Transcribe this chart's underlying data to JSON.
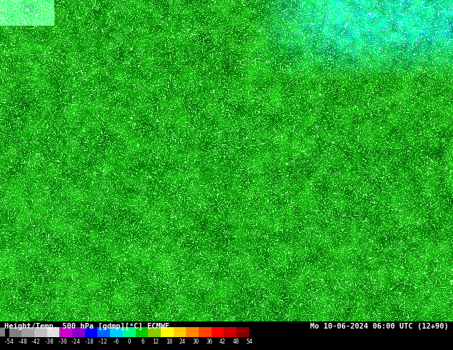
{
  "title_left": "Height/Temp. 500 hPa [gdmp][°C] ECMWF",
  "title_right": "Mo 10-06-2024 06:00 UTC (12+90)",
  "colorbar_labels": [
    "-54",
    "-48",
    "-42",
    "-38",
    "-30",
    "-24",
    "-18",
    "-12",
    "-6",
    "0",
    "6",
    "12",
    "18",
    "24",
    "30",
    "36",
    "42",
    "48",
    "54"
  ],
  "colorbar_values": [
    -54,
    -48,
    -42,
    -38,
    -30,
    -24,
    -18,
    -12,
    -6,
    0,
    6,
    12,
    18,
    24,
    30,
    36,
    42,
    48,
    54
  ],
  "background_color": "#000000",
  "fig_width": 6.34,
  "fig_height": 4.9,
  "dpi": 100
}
